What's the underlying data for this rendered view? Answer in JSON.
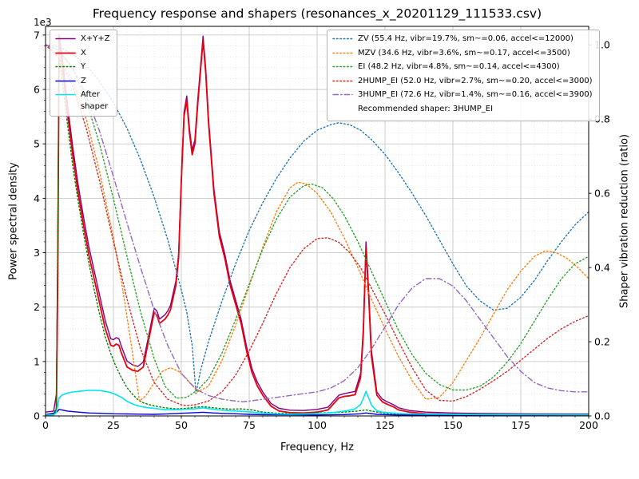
{
  "chart_data": {
    "type": "line",
    "title": "Frequency response and shapers (resonances_x_20201129_111533.csv)",
    "xlabel": "Frequency, Hz",
    "ylabel_left": "Power spectral density",
    "ylabel_right": "Shaper vibration reduction (ratio)",
    "offset_text": "1e3",
    "grid": "both",
    "legend_left_position": "upper left",
    "legend_right_position": "upper right",
    "recommended_note": "Recommended shaper: 3HUMP_EI",
    "xlim": [
      0,
      200
    ],
    "ylim_left": [
      0,
      7160
    ],
    "ylim_right": [
      0,
      1.05
    ],
    "x_major_step": 25,
    "x_minor_step": 5,
    "y_major_step_left": 1000,
    "y_minor_step_left": 200,
    "x_ticks": {
      "values": [
        0,
        25,
        50,
        75,
        100,
        125,
        150,
        175,
        200
      ],
      "labels": [
        "0",
        "25",
        "50",
        "75",
        "100",
        "125",
        "150",
        "175",
        "200"
      ]
    },
    "y_ticks_left": {
      "values": [
        0,
        1000,
        2000,
        3000,
        4000,
        5000,
        6000,
        7000
      ],
      "labels": [
        "0",
        "1",
        "2",
        "3",
        "4",
        "5",
        "6",
        "7"
      ]
    },
    "y_ticks_right": {
      "values": [
        0,
        0.2,
        0.4,
        0.6,
        0.8,
        1.0
      ],
      "labels": [
        "0.0",
        "0.2",
        "0.4",
        "0.6",
        "0.8",
        "1.0"
      ]
    },
    "series": [
      {
        "name": "X+Y+Z",
        "label": "X+Y+Z",
        "legend": "left",
        "axis": "left",
        "color": "#800080",
        "style": "solid",
        "width": 1.4,
        "x": [
          0,
          3,
          4,
          4.5,
          5,
          6,
          8,
          10,
          12,
          14,
          16,
          18,
          20,
          22,
          24,
          25,
          26,
          27,
          28,
          30,
          32,
          34,
          36,
          38,
          40,
          41,
          42,
          44,
          45,
          46,
          48,
          49,
          50,
          51,
          52,
          53,
          54,
          55,
          56,
          57,
          58,
          59,
          60,
          62,
          64,
          66,
          68,
          70,
          72,
          74,
          76,
          78,
          80,
          83,
          86,
          90,
          95,
          100,
          104,
          108,
          110,
          112,
          114,
          116,
          117,
          118,
          119,
          120,
          122,
          124,
          126,
          128,
          130,
          134,
          140,
          150,
          160,
          180,
          200
        ],
        "y": [
          70,
          90,
          400,
          3000,
          7000,
          6650,
          5750,
          4950,
          4250,
          3650,
          3100,
          2650,
          2200,
          1750,
          1420,
          1400,
          1440,
          1420,
          1270,
          1010,
          940,
          910,
          990,
          1480,
          1980,
          1930,
          1780,
          1860,
          1930,
          2030,
          2480,
          2980,
          4380,
          5580,
          5880,
          5280,
          4880,
          5080,
          5780,
          6380,
          6980,
          6380,
          5480,
          4180,
          3380,
          2980,
          2480,
          2130,
          1780,
          1280,
          870,
          620,
          440,
          230,
          140,
          105,
          100,
          120,
          160,
          380,
          410,
          430,
          450,
          780,
          1600,
          3200,
          2300,
          1200,
          440,
          310,
          255,
          210,
          150,
          100,
          70,
          55,
          45,
          38,
          35
        ]
      },
      {
        "name": "X",
        "label": "X",
        "legend": "left",
        "axis": "left",
        "color": "#e8000d",
        "style": "solid",
        "width": 1.8,
        "x": [
          0,
          3,
          4,
          4.5,
          5,
          6,
          8,
          10,
          12,
          14,
          16,
          18,
          20,
          22,
          24,
          25,
          26,
          27,
          28,
          30,
          32,
          34,
          36,
          38,
          40,
          41,
          42,
          44,
          45,
          46,
          48,
          49,
          50,
          51,
          52,
          53,
          54,
          55,
          56,
          57,
          58,
          59,
          60,
          62,
          64,
          66,
          68,
          70,
          72,
          74,
          76,
          78,
          80,
          83,
          86,
          90,
          95,
          100,
          104,
          108,
          110,
          112,
          114,
          116,
          117,
          118,
          119,
          120,
          122,
          124,
          126,
          128,
          130,
          134,
          140,
          150,
          160,
          180,
          200
        ],
        "y": [
          20,
          30,
          120,
          2500,
          6900,
          6500,
          5600,
          4800,
          4100,
          3500,
          2950,
          2500,
          2050,
          1600,
          1300,
          1280,
          1320,
          1300,
          1150,
          900,
          840,
          820,
          900,
          1400,
          1900,
          1850,
          1700,
          1780,
          1850,
          1950,
          2400,
          2900,
          4300,
          5500,
          5800,
          5200,
          4800,
          5000,
          5700,
          6300,
          6900,
          6300,
          5400,
          4100,
          3300,
          2900,
          2400,
          2050,
          1700,
          1200,
          800,
          550,
          380,
          180,
          90,
          60,
          55,
          70,
          110,
          330,
          360,
          370,
          390,
          700,
          1500,
          3080,
          2200,
          1100,
          380,
          260,
          210,
          170,
          110,
          70,
          40,
          30,
          25,
          20,
          18
        ]
      },
      {
        "name": "Y",
        "label": "Y",
        "legend": "left",
        "axis": "left",
        "color": "#008000",
        "style": "dotted",
        "width": 1.4,
        "x": [
          0,
          3,
          4,
          5,
          6,
          8,
          10,
          12,
          14,
          16,
          18,
          20,
          22,
          24,
          26,
          28,
          30,
          32,
          34,
          36,
          38,
          40,
          44,
          48,
          52,
          55,
          58,
          60,
          64,
          68,
          72,
          76,
          80,
          85,
          90,
          95,
          100,
          105,
          110,
          114,
          118,
          122,
          126,
          130,
          140,
          150,
          160,
          180,
          200
        ],
        "y": [
          25,
          35,
          150,
          6600,
          6200,
          5400,
          4600,
          3950,
          3350,
          2800,
          2300,
          1850,
          1450,
          1150,
          900,
          700,
          520,
          400,
          300,
          240,
          210,
          185,
          150,
          130,
          140,
          160,
          170,
          160,
          140,
          125,
          130,
          110,
          70,
          50,
          45,
          50,
          55,
          60,
          70,
          85,
          110,
          70,
          45,
          30,
          20,
          15,
          12,
          10,
          8
        ]
      },
      {
        "name": "Z",
        "label": "Z",
        "legend": "left",
        "axis": "left",
        "color": "#0000dd",
        "style": "solid",
        "width": 1.4,
        "x": [
          0,
          4,
          5,
          8,
          12,
          16,
          20,
          25,
          30,
          35,
          40,
          45,
          50,
          55,
          58,
          62,
          66,
          70,
          75,
          80,
          90,
          100,
          110,
          116,
          118,
          122,
          130,
          140,
          160,
          180,
          200
        ],
        "y": [
          25,
          60,
          120,
          90,
          70,
          55,
          48,
          40,
          36,
          32,
          30,
          38,
          48,
          60,
          68,
          55,
          45,
          40,
          30,
          24,
          20,
          18,
          25,
          40,
          55,
          30,
          18,
          15,
          12,
          10,
          10
        ]
      },
      {
        "name": "After shaper",
        "label": "After\nshaper",
        "legend": "left",
        "axis": "left",
        "color": "#00e5ee",
        "style": "solid",
        "width": 1.6,
        "x": [
          0,
          3,
          4,
          5,
          6,
          8,
          10,
          12,
          14,
          16,
          18,
          20,
          22,
          24,
          26,
          28,
          30,
          32,
          34,
          36,
          38,
          40,
          44,
          48,
          52,
          55,
          58,
          60,
          64,
          68,
          72,
          76,
          80,
          85,
          90,
          95,
          100,
          104,
          108,
          110,
          112,
          114,
          116,
          117,
          118,
          119,
          120,
          122,
          124,
          126,
          130,
          140,
          150,
          160,
          180,
          200
        ],
        "y": [
          15,
          20,
          60,
          330,
          380,
          420,
          440,
          450,
          460,
          470,
          470,
          465,
          450,
          430,
          390,
          340,
          270,
          220,
          185,
          165,
          150,
          140,
          115,
          115,
          125,
          130,
          150,
          135,
          110,
          95,
          85,
          70,
          50,
          38,
          32,
          35,
          42,
          55,
          75,
          90,
          105,
          130,
          210,
          320,
          450,
          330,
          200,
          95,
          70,
          60,
          45,
          32,
          28,
          25,
          22,
          20
        ]
      },
      {
        "name": "ZV",
        "label": "ZV (55.4 Hz, vibr=19.7%, sm~=0.06, accel<=12000)",
        "legend": "right",
        "axis": "right",
        "color": "#1f77b4",
        "style": "dotted",
        "width": 1.4,
        "x": [
          0,
          5,
          10,
          15,
          20,
          25,
          30,
          35,
          40,
          45,
          50,
          52,
          54,
          55.4,
          57,
          60,
          65,
          70,
          75,
          80,
          85,
          90,
          95,
          100,
          105,
          108,
          112,
          116,
          120,
          125,
          130,
          135,
          140,
          145,
          150,
          155,
          160,
          165,
          170,
          175,
          180,
          185,
          190,
          195,
          200
        ],
        "y": [
          1.0,
          0.995,
          0.975,
          0.945,
          0.9,
          0.845,
          0.775,
          0.69,
          0.59,
          0.475,
          0.34,
          0.28,
          0.19,
          0.06,
          0.12,
          0.2,
          0.31,
          0.41,
          0.5,
          0.575,
          0.64,
          0.695,
          0.74,
          0.77,
          0.785,
          0.79,
          0.785,
          0.77,
          0.745,
          0.705,
          0.655,
          0.6,
          0.54,
          0.475,
          0.41,
          0.35,
          0.31,
          0.285,
          0.29,
          0.32,
          0.365,
          0.42,
          0.47,
          0.515,
          0.55
        ]
      },
      {
        "name": "MZV",
        "label": "MZV (34.6 Hz, vibr=3.6%, sm~=0.17, accel<=3500)",
        "legend": "right",
        "axis": "right",
        "color": "#ff7f0e",
        "style": "dotted",
        "width": 1.4,
        "x": [
          0,
          5,
          10,
          15,
          20,
          25,
          28,
          31,
          34.6,
          37,
          40,
          43,
          46,
          49,
          52,
          56,
          60,
          65,
          70,
          75,
          80,
          85,
          90,
          93,
          96,
          100,
          105,
          110,
          115,
          120,
          125,
          130,
          135,
          140,
          145,
          150,
          155,
          160,
          165,
          170,
          175,
          180,
          184,
          188,
          192,
          196,
          200
        ],
        "y": [
          1.0,
          0.97,
          0.905,
          0.8,
          0.655,
          0.48,
          0.36,
          0.22,
          0.04,
          0.055,
          0.09,
          0.12,
          0.13,
          0.12,
          0.1,
          0.065,
          0.08,
          0.15,
          0.245,
          0.35,
          0.455,
          0.55,
          0.615,
          0.63,
          0.625,
          0.6,
          0.55,
          0.48,
          0.4,
          0.315,
          0.235,
          0.16,
          0.095,
          0.045,
          0.05,
          0.09,
          0.15,
          0.21,
          0.275,
          0.34,
          0.39,
          0.43,
          0.445,
          0.44,
          0.425,
          0.4,
          0.37
        ]
      },
      {
        "name": "EI",
        "label": "EI (48.2 Hz, vibr=4.8%, sm~=0.14, accel<=4300)",
        "legend": "right",
        "axis": "right",
        "color": "#2ca02c",
        "style": "dotted",
        "width": 1.4,
        "x": [
          0,
          5,
          10,
          15,
          20,
          25,
          30,
          35,
          40,
          44,
          48.2,
          52,
          56,
          60,
          65,
          70,
          75,
          80,
          85,
          90,
          95,
          98,
          102,
          106,
          110,
          115,
          120,
          125,
          130,
          135,
          140,
          145,
          150,
          155,
          160,
          165,
          170,
          175,
          180,
          185,
          190,
          195,
          200
        ],
        "y": [
          1.0,
          0.985,
          0.935,
          0.85,
          0.73,
          0.585,
          0.43,
          0.28,
          0.155,
          0.08,
          0.048,
          0.05,
          0.07,
          0.1,
          0.17,
          0.26,
          0.355,
          0.45,
          0.53,
          0.59,
          0.62,
          0.625,
          0.615,
          0.585,
          0.54,
          0.47,
          0.39,
          0.31,
          0.23,
          0.165,
          0.115,
          0.085,
          0.07,
          0.07,
          0.08,
          0.105,
          0.145,
          0.195,
          0.255,
          0.315,
          0.37,
          0.41,
          0.43
        ]
      },
      {
        "name": "2HUMP_EI",
        "label": "2HUMP_EI (52.0 Hz, vibr=2.7%, sm~=0.20, accel<=3000)",
        "legend": "right",
        "axis": "right",
        "color": "#d62728",
        "style": "dotted",
        "width": 1.4,
        "x": [
          0,
          5,
          10,
          15,
          20,
          25,
          30,
          35,
          40,
          45,
          50,
          52,
          55,
          60,
          65,
          70,
          75,
          80,
          85,
          90,
          95,
          100,
          104,
          108,
          112,
          116,
          120,
          125,
          130,
          135,
          140,
          145,
          150,
          155,
          160,
          165,
          170,
          175,
          180,
          185,
          190,
          195,
          200
        ],
        "y": [
          1.0,
          0.965,
          0.89,
          0.775,
          0.63,
          0.47,
          0.315,
          0.18,
          0.09,
          0.045,
          0.03,
          0.028,
          0.03,
          0.04,
          0.065,
          0.11,
          0.175,
          0.25,
          0.33,
          0.4,
          0.45,
          0.478,
          0.48,
          0.468,
          0.44,
          0.4,
          0.345,
          0.275,
          0.2,
          0.13,
          0.07,
          0.042,
          0.04,
          0.052,
          0.072,
          0.095,
          0.12,
          0.15,
          0.18,
          0.21,
          0.235,
          0.255,
          0.27
        ]
      },
      {
        "name": "3HUMP_EI",
        "label": "3HUMP_EI (72.6 Hz, vibr=1.4%, sm~=0.16, accel<=3900)",
        "legend": "right",
        "axis": "right",
        "color": "#9467bd",
        "style": "dashdot",
        "width": 1.4,
        "x": [
          0,
          5,
          10,
          15,
          20,
          25,
          30,
          35,
          40,
          45,
          50,
          53,
          56,
          60,
          65,
          70,
          72.6,
          75,
          80,
          85,
          90,
          95,
          100,
          105,
          110,
          115,
          120,
          125,
          130,
          135,
          140,
          145,
          150,
          155,
          160,
          165,
          170,
          175,
          180,
          185,
          190,
          195,
          200
        ],
        "y": [
          1.0,
          0.985,
          0.94,
          0.865,
          0.765,
          0.645,
          0.52,
          0.4,
          0.285,
          0.19,
          0.115,
          0.09,
          0.07,
          0.055,
          0.045,
          0.04,
          0.038,
          0.04,
          0.045,
          0.05,
          0.055,
          0.06,
          0.065,
          0.075,
          0.095,
          0.13,
          0.18,
          0.24,
          0.3,
          0.345,
          0.37,
          0.37,
          0.35,
          0.31,
          0.26,
          0.21,
          0.16,
          0.12,
          0.09,
          0.075,
          0.068,
          0.065,
          0.065
        ]
      }
    ]
  }
}
